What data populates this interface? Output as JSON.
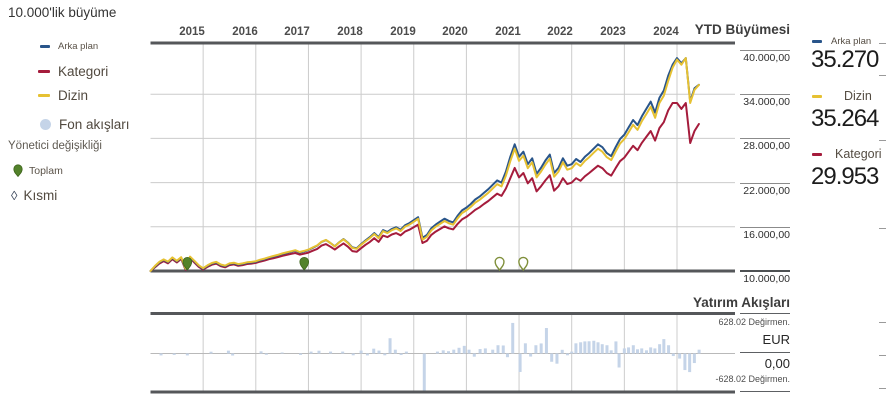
{
  "title": "10.000'lik büyüme",
  "colors": {
    "arka_plan": "#29558a",
    "kategori": "#a51c3c",
    "dizin": "#e6c132",
    "fon_akislari": "#c5d4e8",
    "manager_total": "#53822b",
    "manager_partial": "#7f8f3a",
    "axis_dark": "#55575a",
    "gridline": "#cccccc"
  },
  "legend": {
    "items": [
      {
        "label": "Arka plan",
        "icon": "blue-dash"
      },
      {
        "label": "Kategori",
        "icon": "red-dash"
      },
      {
        "label": "Dizin",
        "icon": "yellow-dash"
      },
      {
        "label": "Fon akışları",
        "icon": "lightblue-circle"
      }
    ],
    "manager_section": {
      "heading": "Yönetici değişikliği",
      "items": [
        {
          "label": "Toplam",
          "icon": "green-pin-filled"
        },
        {
          "label": "Kısmi",
          "icon": "diamond-outline"
        }
      ]
    }
  },
  "main_chart": {
    "x_axis_years": [
      "2015",
      "2016",
      "2017",
      "2018",
      "2019",
      "2020",
      "2021",
      "2022",
      "2023",
      "2024"
    ],
    "y_axis_labels": [
      "40.000,00",
      "34.000,00",
      "28.000,00",
      "22.000,00",
      "16.000,00",
      "10.000,00"
    ]
  },
  "ytd_panel": {
    "title": "YTD Büyümesi",
    "items": [
      {
        "label": "Arka plan",
        "value": "35.270"
      },
      {
        "label": "Dizin",
        "value": "35.264"
      },
      {
        "label": "Kategori",
        "value": "29.953"
      }
    ]
  },
  "flows_panel": {
    "title": "Yatırım Akışları",
    "max_label": "628.02 Değirmen.",
    "currency": "EUR",
    "zero_label": "0,00",
    "min_label": "-628.02 Değirmen."
  },
  "chart_data": {
    "type": "line",
    "title": "10.000'lik büyüme",
    "x_unit": "year_fraction",
    "x_range": [
      2015.0,
      2025.5
    ],
    "monthly_start": 2015.0,
    "monthly_step_years": 0.0833333,
    "ylim": [
      10000,
      46000
    ],
    "y_ticks": [
      10000,
      16000,
      22000,
      28000,
      34000,
      40000
    ],
    "legend_position": "left",
    "grid": true,
    "series": [
      {
        "name": "Arka plan",
        "final_value": 35270,
        "values": [
          10000,
          10600,
          11150,
          11500,
          11200,
          11765,
          11300,
          11800,
          10250,
          11900,
          11300,
          10700,
          10300,
          10700,
          11000,
          11150,
          10800,
          10650,
          10950,
          11050,
          10850,
          10950,
          11100,
          11150,
          11250,
          11450,
          11600,
          11800,
          11950,
          12100,
          12300,
          12450,
          12600,
          12750,
          12500,
          12650,
          12850,
          13150,
          13450,
          13950,
          14200,
          13800,
          13350,
          13900,
          14340,
          13850,
          13200,
          13100,
          13650,
          14150,
          14600,
          15150,
          14600,
          15550,
          15300,
          15700,
          15950,
          15600,
          16200,
          16500,
          16900,
          17300,
          14500,
          14890,
          15800,
          16300,
          16700,
          17100,
          16800,
          16600,
          17500,
          18220,
          18600,
          19100,
          19700,
          20100,
          20600,
          21100,
          21700,
          22300,
          22000,
          23500,
          25500,
          27200,
          25500,
          26200,
          24500,
          25300,
          23200,
          24000,
          25000,
          25800,
          23300,
          24000,
          25300,
          24300,
          24500,
          25200,
          24800,
          25500,
          26000,
          26600,
          27200,
          26800,
          26000,
          25600,
          26800,
          27900,
          28500,
          29500,
          30500,
          29800,
          31000,
          32000,
          33000,
          31500,
          33500,
          34500,
          36500,
          38000,
          38900,
          38200,
          38900,
          33000,
          34800,
          35270
        ]
      },
      {
        "name": "Dizin",
        "final_value": 35264,
        "values": [
          10000,
          10680,
          11230,
          11570,
          11280,
          11840,
          11380,
          11870,
          10330,
          11960,
          11380,
          10780,
          10380,
          10780,
          11080,
          11230,
          10880,
          10730,
          11030,
          11130,
          10930,
          11030,
          11180,
          11230,
          11330,
          11530,
          11680,
          11880,
          12030,
          12180,
          12380,
          12530,
          12680,
          12830,
          12580,
          12730,
          12900,
          13200,
          13480,
          13980,
          14220,
          13800,
          13330,
          13880,
          14300,
          13800,
          13130,
          13020,
          13550,
          14050,
          14480,
          15020,
          14470,
          15400,
          15150,
          15540,
          15780,
          15430,
          16020,
          16300,
          16680,
          17080,
          14250,
          14640,
          15530,
          16020,
          16400,
          16790,
          16480,
          16280,
          17160,
          17860,
          18220,
          18700,
          19280,
          19660,
          20140,
          20620,
          21200,
          21780,
          21480,
          22950,
          24900,
          26600,
          24950,
          25650,
          23950,
          24750,
          22700,
          23500,
          24450,
          25250,
          22800,
          23500,
          24750,
          23750,
          23950,
          24650,
          24250,
          24950,
          25450,
          26050,
          26600,
          26200,
          25450,
          25050,
          26200,
          27300,
          27900,
          28850,
          29850,
          29150,
          30350,
          31300,
          32300,
          30800,
          32800,
          33800,
          35800,
          37600,
          38700,
          38000,
          38900,
          32800,
          34600,
          35264
        ]
      },
      {
        "name": "Kategori",
        "final_value": 29953,
        "values": [
          10000,
          10500,
          11000,
          11350,
          11050,
          11600,
          11150,
          11650,
          10150,
          11750,
          11150,
          10550,
          10200,
          10550,
          10850,
          11000,
          10650,
          10500,
          10800,
          10900,
          10700,
          10800,
          10950,
          11000,
          11100,
          11280,
          11420,
          11600,
          11730,
          11870,
          12050,
          12180,
          12320,
          12450,
          12220,
          12350,
          12500,
          12750,
          13000,
          13450,
          13650,
          13300,
          12900,
          13350,
          13750,
          13300,
          12700,
          12600,
          13100,
          13550,
          13950,
          14450,
          13950,
          14800,
          14600,
          14950,
          15150,
          14850,
          15350,
          15600,
          15950,
          16300,
          13800,
          14100,
          14900,
          15350,
          15700,
          16050,
          15800,
          15650,
          16400,
          17000,
          17350,
          17800,
          18300,
          18650,
          19100,
          19500,
          20000,
          20500,
          20200,
          21200,
          22600,
          24000,
          22700,
          23300,
          21900,
          22600,
          20800,
          21500,
          22300,
          23000,
          20900,
          21500,
          22600,
          21800,
          22000,
          22600,
          22250,
          22850,
          23300,
          23800,
          24300,
          23950,
          23300,
          22950,
          23950,
          24900,
          25400,
          26200,
          27000,
          26400,
          27400,
          28200,
          29000,
          27700,
          29400,
          30200,
          31800,
          32800,
          32800,
          32000,
          32800,
          27380,
          29000,
          29953
        ]
      }
    ],
    "manager_changes": {
      "total_t": [
        2015.7,
        2017.92
      ],
      "partial_t": [
        2021.63,
        2022.08
      ]
    },
    "fund_flows": {
      "type": "bar",
      "unit": "EUR_million",
      "currency": "EUR",
      "y_max": 628.02,
      "y_min": -628.02,
      "bars": [
        [
          2015.2,
          -30
        ],
        [
          2015.45,
          -22
        ],
        [
          2015.7,
          -30
        ],
        [
          2016.15,
          28
        ],
        [
          2016.48,
          45
        ],
        [
          2016.56,
          -32
        ],
        [
          2017.1,
          34
        ],
        [
          2017.2,
          -20
        ],
        [
          2017.5,
          16
        ],
        [
          2017.85,
          -22
        ],
        [
          2018.05,
          30
        ],
        [
          2018.2,
          44
        ],
        [
          2018.42,
          30
        ],
        [
          2018.65,
          30
        ],
        [
          2018.85,
          -28
        ],
        [
          2019.0,
          46
        ],
        [
          2019.12,
          -30
        ],
        [
          2019.24,
          76
        ],
        [
          2019.34,
          46
        ],
        [
          2019.45,
          -28
        ],
        [
          2019.55,
          240
        ],
        [
          2019.65,
          60
        ],
        [
          2019.76,
          -24
        ],
        [
          2019.86,
          30
        ],
        [
          2020.2,
          -620
        ],
        [
          2020.45,
          30
        ],
        [
          2020.56,
          50
        ],
        [
          2020.66,
          36
        ],
        [
          2020.76,
          60
        ],
        [
          2020.86,
          90
        ],
        [
          2020.96,
          120
        ],
        [
          2021.05,
          60
        ],
        [
          2021.15,
          -50
        ],
        [
          2021.26,
          70
        ],
        [
          2021.36,
          80
        ],
        [
          2021.5,
          60
        ],
        [
          2021.6,
          130
        ],
        [
          2021.7,
          126
        ],
        [
          2021.78,
          -58
        ],
        [
          2021.88,
          480
        ],
        [
          2022.02,
          -290
        ],
        [
          2022.12,
          160
        ],
        [
          2022.22,
          -48
        ],
        [
          2022.32,
          130
        ],
        [
          2022.42,
          158
        ],
        [
          2022.52,
          400
        ],
        [
          2022.62,
          -130
        ],
        [
          2022.72,
          -160
        ],
        [
          2022.82,
          58
        ],
        [
          2022.92,
          -28
        ],
        [
          2023.0,
          30
        ],
        [
          2023.08,
          160
        ],
        [
          2023.17,
          176
        ],
        [
          2023.25,
          190
        ],
        [
          2023.33,
          192
        ],
        [
          2023.42,
          200
        ],
        [
          2023.5,
          176
        ],
        [
          2023.58,
          146
        ],
        [
          2023.67,
          130
        ],
        [
          2023.75,
          50
        ],
        [
          2023.84,
          190
        ],
        [
          2023.9,
          -220
        ],
        [
          2024.0,
          80
        ],
        [
          2024.08,
          96
        ],
        [
          2024.17,
          130
        ],
        [
          2024.25,
          66
        ],
        [
          2024.33,
          80
        ],
        [
          2024.42,
          50
        ],
        [
          2024.5,
          96
        ],
        [
          2024.58,
          80
        ],
        [
          2024.67,
          146
        ],
        [
          2024.75,
          226
        ],
        [
          2024.84,
          130
        ],
        [
          2024.93,
          -40
        ],
        [
          2025.05,
          -80
        ],
        [
          2025.15,
          -260
        ],
        [
          2025.24,
          -292
        ],
        [
          2025.33,
          -150
        ],
        [
          2025.42,
          60
        ]
      ]
    }
  }
}
